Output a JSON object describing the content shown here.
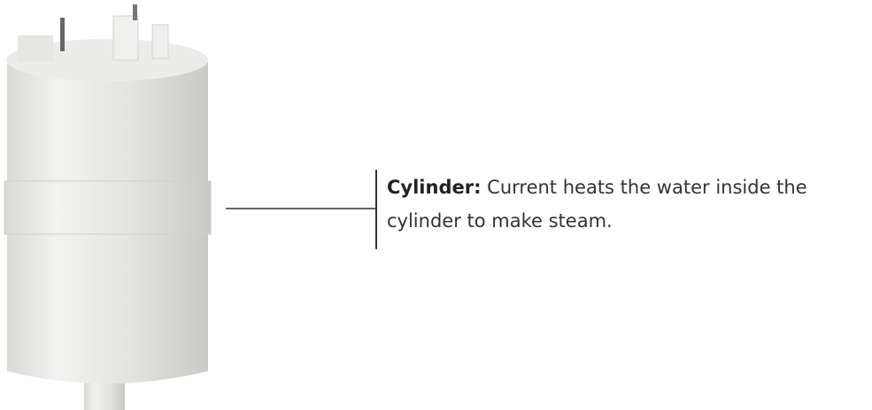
{
  "callout": {
    "term": "Cylinder:",
    "description": "Current heats the water inside the cylinder to make steam."
  }
}
